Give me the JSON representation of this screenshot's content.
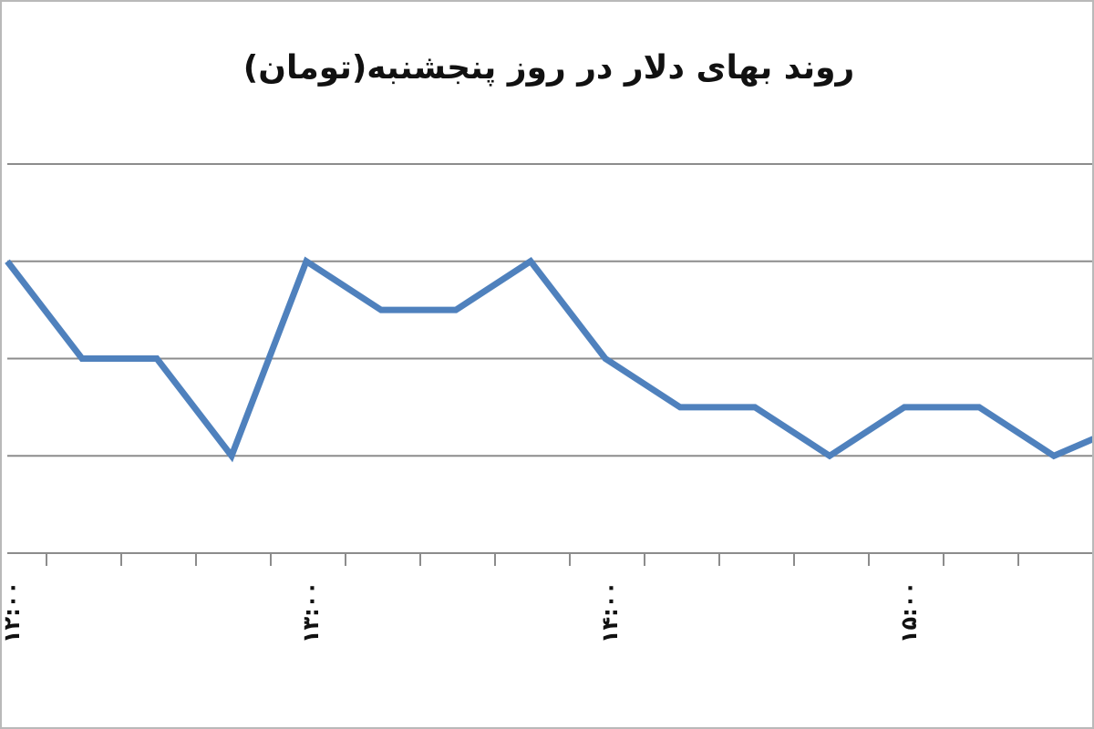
{
  "chart_data": {
    "type": "line",
    "title": "روند بهای دلار در روز پنجشنبه(تومان)",
    "xlabel": "",
    "ylabel": "",
    "x": [
      0,
      1,
      2,
      3,
      4,
      5,
      6,
      7,
      8,
      9,
      10,
      11,
      12,
      13,
      14,
      15
    ],
    "series": [
      {
        "values": [
          3,
          2,
          2,
          1,
          3,
          2.5,
          2.5,
          3,
          2,
          1.5,
          1.5,
          1,
          1.5,
          1.5,
          1,
          1.33
        ]
      }
    ],
    "ylim": [
      0,
      4
    ],
    "x_tick_labels": [
      "۱۲:۰۰",
      "۱۳:۰۰",
      "۱۴:۰۰",
      "۱۵:۰۰"
    ],
    "x_tick_label_positions": [
      0,
      4,
      8,
      12
    ],
    "grid": true,
    "line_color": "#4f81bd"
  }
}
